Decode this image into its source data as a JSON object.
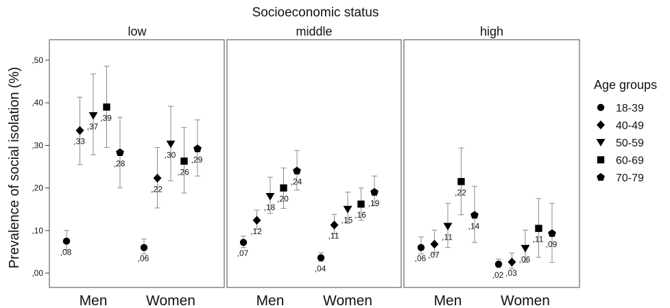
{
  "chart_data": {
    "type": "scatter",
    "title": "Socioeconomic status",
    "ylabel": "Prevalence of social isolation (%)",
    "ylim": [
      -0.02,
      0.52
    ],
    "yticks": [
      ",00",
      ",10",
      ",20",
      ",30",
      ",40",
      ",50"
    ],
    "ytick_values": [
      0,
      0.1,
      0.2,
      0.3,
      0.4,
      0.5
    ],
    "grid": false,
    "panels": [
      "low",
      "middle",
      "high"
    ],
    "categories": [
      "Men",
      "Women"
    ],
    "legend": {
      "title": "Age groups",
      "placement": "right",
      "items": [
        {
          "label": "18-39",
          "marker": "circle"
        },
        {
          "label": "40-49",
          "marker": "diamond"
        },
        {
          "label": "50-59",
          "marker": "triangle-down"
        },
        {
          "label": "60-69",
          "marker": "square"
        },
        {
          "label": "70-79",
          "marker": "pentagon"
        }
      ]
    },
    "series": [
      {
        "name": "18-39",
        "marker": "circle",
        "values": [
          [
            0.075,
            0.06
          ],
          [
            0.072,
            0.036
          ],
          [
            0.06,
            0.021
          ]
        ],
        "labels": [
          [
            ",08",
            ",06"
          ],
          [
            ",07",
            ",04"
          ],
          [
            ",06",
            ",02"
          ]
        ],
        "ci_low": [
          [
            0.055,
            0.045
          ],
          [
            0.06,
            0.028
          ],
          [
            0.045,
            0.013
          ]
        ],
        "ci_high": [
          [
            0.1,
            0.08
          ],
          [
            0.087,
            0.048
          ],
          [
            0.085,
            0.033
          ]
        ]
      },
      {
        "name": "40-49",
        "marker": "diamond",
        "values": [
          [
            0.335,
            0.223
          ],
          [
            0.124,
            0.113
          ],
          [
            0.068,
            0.026
          ]
        ],
        "labels": [
          [
            ",33",
            ",22"
          ],
          [
            ",12",
            ",11"
          ],
          [
            ",07",
            ",03"
          ]
        ],
        "ci_low": [
          [
            0.255,
            0.153
          ],
          [
            0.103,
            0.092
          ],
          [
            0.045,
            0.01
          ]
        ],
        "ci_high": [
          [
            0.413,
            0.295
          ],
          [
            0.148,
            0.138
          ],
          [
            0.101,
            0.047
          ]
        ]
      },
      {
        "name": "50-59",
        "marker": "triangle-down",
        "values": [
          [
            0.37,
            0.303
          ],
          [
            0.18,
            0.15
          ],
          [
            0.11,
            0.058
          ]
        ],
        "labels": [
          [
            ",37",
            ",30"
          ],
          [
            ",18",
            ",15"
          ],
          [
            ",11",
            ",06"
          ]
        ],
        "ci_low": [
          [
            0.278,
            0.217
          ],
          [
            0.14,
            0.117
          ],
          [
            0.06,
            0.025
          ]
        ],
        "ci_high": [
          [
            0.468,
            0.392
          ],
          [
            0.225,
            0.19
          ],
          [
            0.164,
            0.101
          ]
        ]
      },
      {
        "name": "60-69",
        "marker": "square",
        "values": [
          [
            0.39,
            0.263
          ],
          [
            0.2,
            0.162
          ],
          [
            0.215,
            0.105
          ]
        ],
        "labels": [
          [
            ",39",
            ",26"
          ],
          [
            ",20",
            ",16"
          ],
          [
            ",22",
            ",11"
          ]
        ],
        "ci_low": [
          [
            0.295,
            0.188
          ],
          [
            0.152,
            0.124
          ],
          [
            0.137,
            0.037
          ]
        ],
        "ci_high": [
          [
            0.486,
            0.342
          ],
          [
            0.247,
            0.2
          ],
          [
            0.294,
            0.175
          ]
        ]
      },
      {
        "name": "70-79",
        "marker": "pentagon",
        "values": [
          [
            0.283,
            0.292
          ],
          [
            0.24,
            0.19
          ],
          [
            0.136,
            0.093
          ]
        ],
        "labels": [
          [
            ",28",
            ",29"
          ],
          [
            ",24",
            ",19"
          ],
          [
            ",14",
            ",09"
          ]
        ],
        "ci_low": [
          [
            0.2,
            0.228
          ],
          [
            0.195,
            0.158
          ],
          [
            0.072,
            0.025
          ]
        ],
        "ci_high": [
          [
            0.366,
            0.36
          ],
          [
            0.288,
            0.228
          ],
          [
            0.204,
            0.164
          ]
        ]
      }
    ]
  }
}
